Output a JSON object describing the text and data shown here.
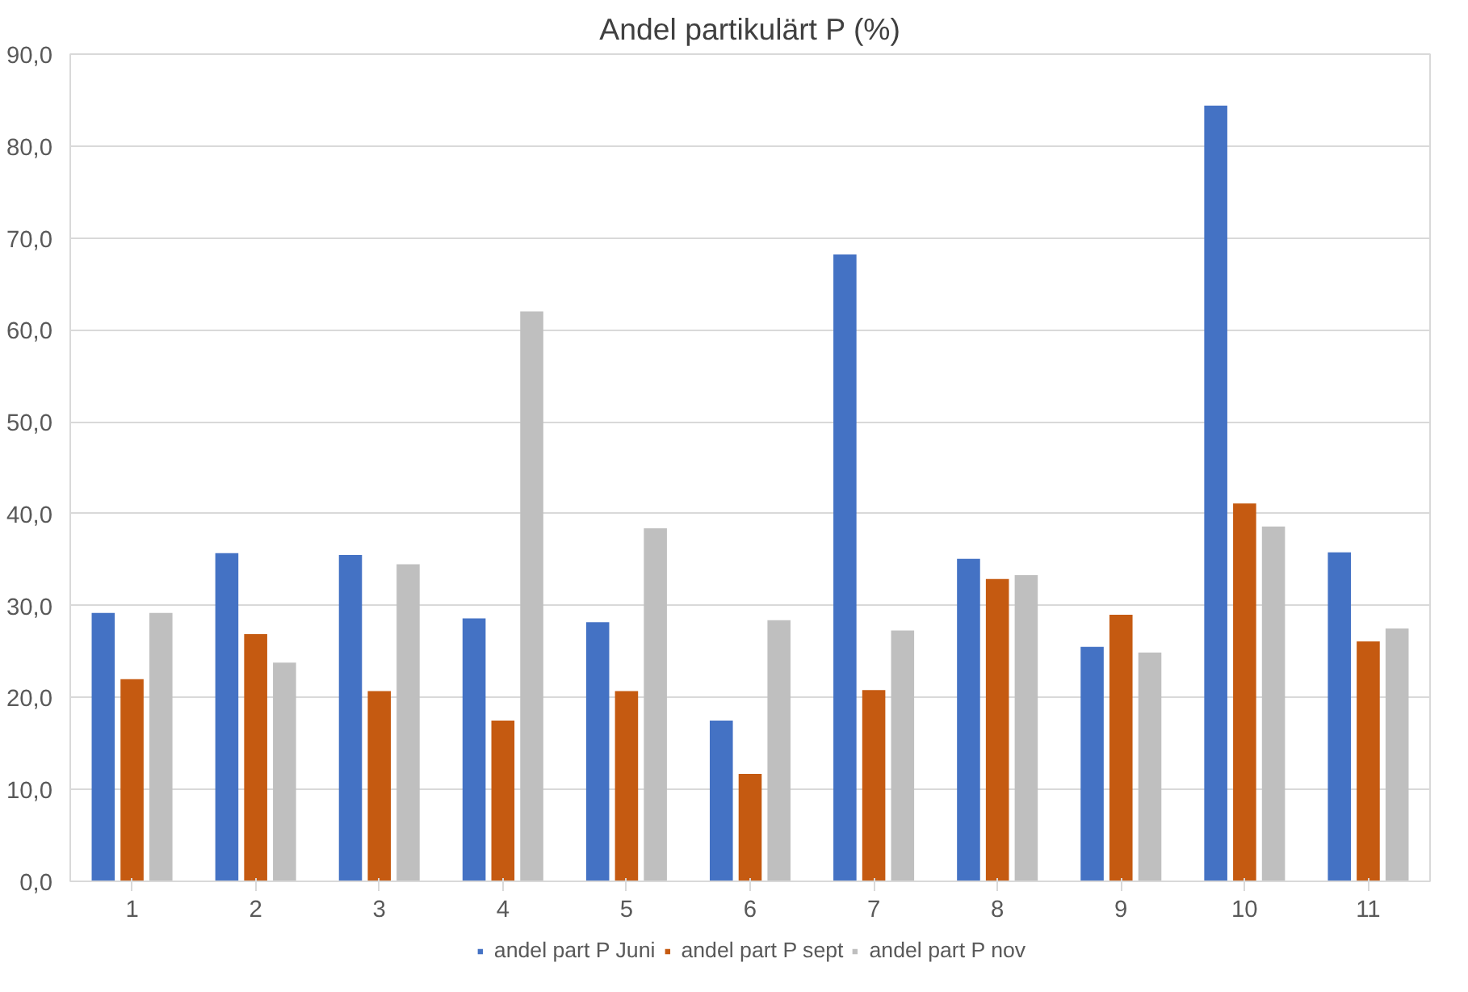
{
  "chart_data": {
    "type": "bar",
    "title": "Andel partikulärt P (%)",
    "categories": [
      "1",
      "2",
      "3",
      "4",
      "5",
      "6",
      "7",
      "8",
      "9",
      "10",
      "11"
    ],
    "series": [
      {
        "name": "andel part P Juni",
        "color": "#4472c4",
        "values": [
          29.2,
          35.7,
          35.5,
          28.6,
          28.2,
          17.5,
          68.2,
          35.1,
          25.5,
          84.4,
          35.8
        ]
      },
      {
        "name": "andel part P sept",
        "color": "#c55a11",
        "values": [
          22.0,
          26.9,
          20.7,
          17.5,
          20.7,
          11.7,
          20.8,
          32.9,
          29.0,
          41.1,
          26.1
        ]
      },
      {
        "name": "andel part P nov",
        "color": "#bfbfbf",
        "values": [
          29.2,
          23.8,
          34.5,
          62.0,
          38.4,
          28.4,
          27.3,
          33.3,
          24.9,
          38.6,
          27.5
        ]
      }
    ],
    "ylim": [
      0,
      90
    ],
    "yticks": [
      {
        "value": 0,
        "label": "0,0"
      },
      {
        "value": 10,
        "label": "10,0"
      },
      {
        "value": 20,
        "label": "20,0"
      },
      {
        "value": 30,
        "label": "30,0"
      },
      {
        "value": 40,
        "label": "40,0"
      },
      {
        "value": 50,
        "label": "50,0"
      },
      {
        "value": 60,
        "label": "60,0"
      },
      {
        "value": 70,
        "label": "70,0"
      },
      {
        "value": 80,
        "label": "80,0"
      },
      {
        "value": 90,
        "label": "90,0"
      }
    ],
    "grid": "y",
    "legend": "bottom"
  }
}
